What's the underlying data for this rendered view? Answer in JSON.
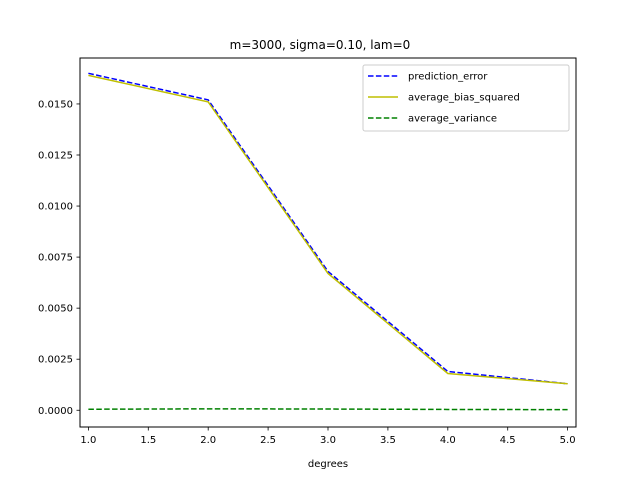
{
  "chart_data": {
    "type": "line",
    "title": "m=3000, sigma=0.10, lam=0",
    "xlabel": "degrees",
    "ylabel": "",
    "xlim": [
      0.93,
      5.07
    ],
    "ylim": [
      -0.00082,
      0.01725
    ],
    "x": [
      1.0,
      2.0,
      3.0,
      4.0,
      5.0
    ],
    "xticks": [
      1.0,
      1.5,
      2.0,
      2.5,
      3.0,
      3.5,
      4.0,
      4.5,
      5.0
    ],
    "xtick_labels": [
      "1.0",
      "1.5",
      "2.0",
      "2.5",
      "3.0",
      "3.5",
      "4.0",
      "4.5",
      "5.0"
    ],
    "yticks": [
      0.0,
      0.0025,
      0.005,
      0.0075,
      0.01,
      0.0125,
      0.015
    ],
    "ytick_labels": [
      "0.0000",
      "0.0025",
      "0.0050",
      "0.0075",
      "0.0100",
      "0.0125",
      "0.0150"
    ],
    "grid": false,
    "legend_position": "top-right",
    "series": [
      {
        "name": "prediction_error",
        "values": [
          0.0165,
          0.0152,
          0.0068,
          0.0019,
          0.0013
        ],
        "color": "#0000ff",
        "dash": true
      },
      {
        "name": "average_bias_squared",
        "values": [
          0.0164,
          0.0151,
          0.0067,
          0.0018,
          0.0013
        ],
        "color": "#bfbf00",
        "dash": false
      },
      {
        "name": "average_variance",
        "values": [
          5e-05,
          7e-05,
          6e-05,
          4e-05,
          3e-05
        ],
        "color": "#008000",
        "dash": true
      }
    ]
  }
}
